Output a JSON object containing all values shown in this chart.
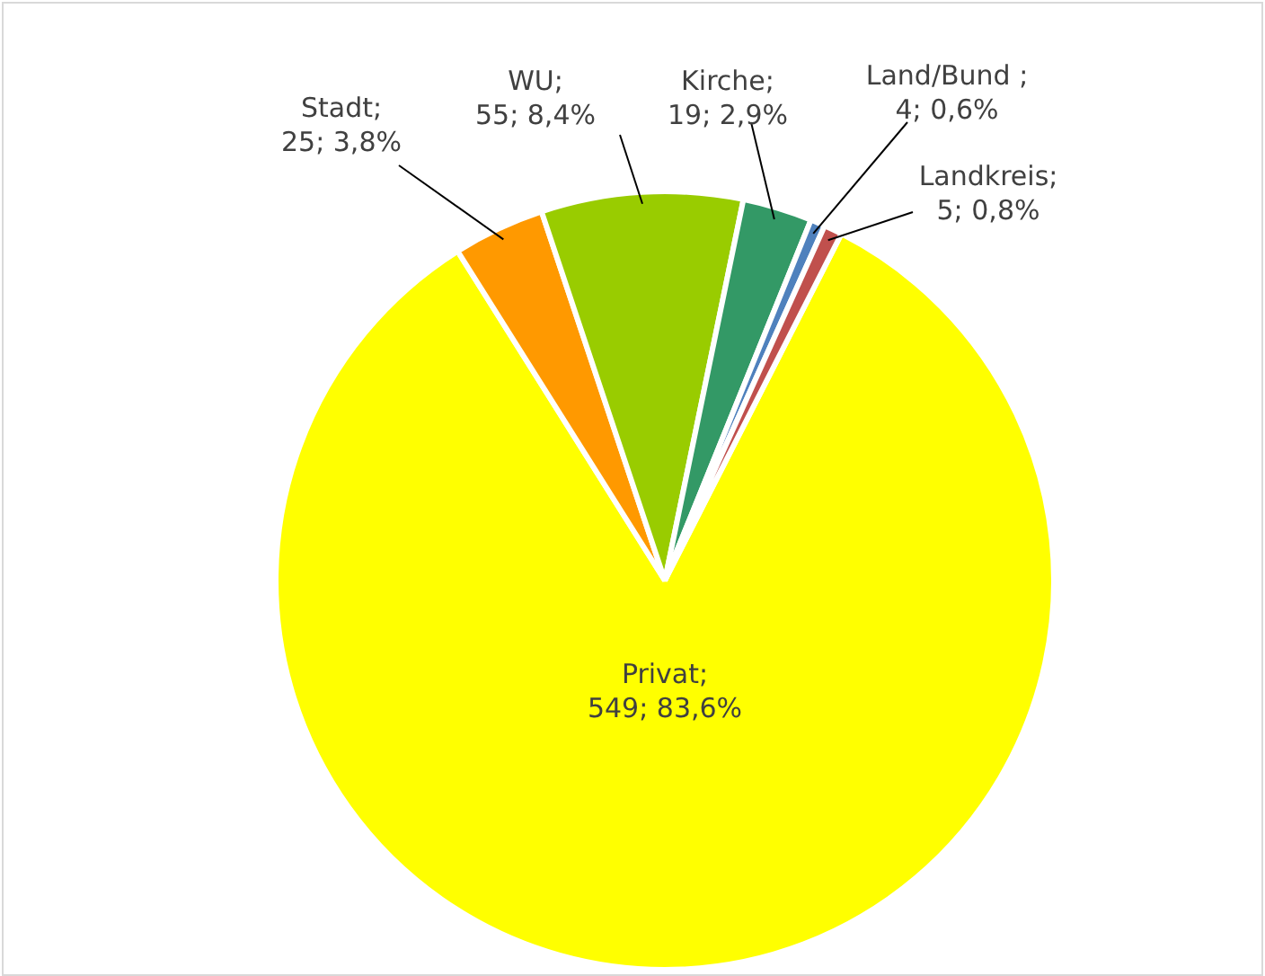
{
  "chart_data": {
    "type": "pie",
    "categories": [
      "Privat",
      "Stadt",
      "WU",
      "Kirche",
      "Land/Bund ",
      "Landkreis"
    ],
    "values": [
      549,
      25,
      55,
      19,
      4,
      5
    ],
    "colors": [
      "#ffff00",
      "#ff9900",
      "#99cc00",
      "#339966",
      "#4f81bd",
      "#c0504d"
    ],
    "value_labels": [
      "; 549; 83,6%",
      "; 25; 3,8%",
      "; 55; 8,4%",
      "; 19; 2,9%",
      "; 4; 0,6%",
      "; 5; 0,8%"
    ],
    "legend": false
  }
}
